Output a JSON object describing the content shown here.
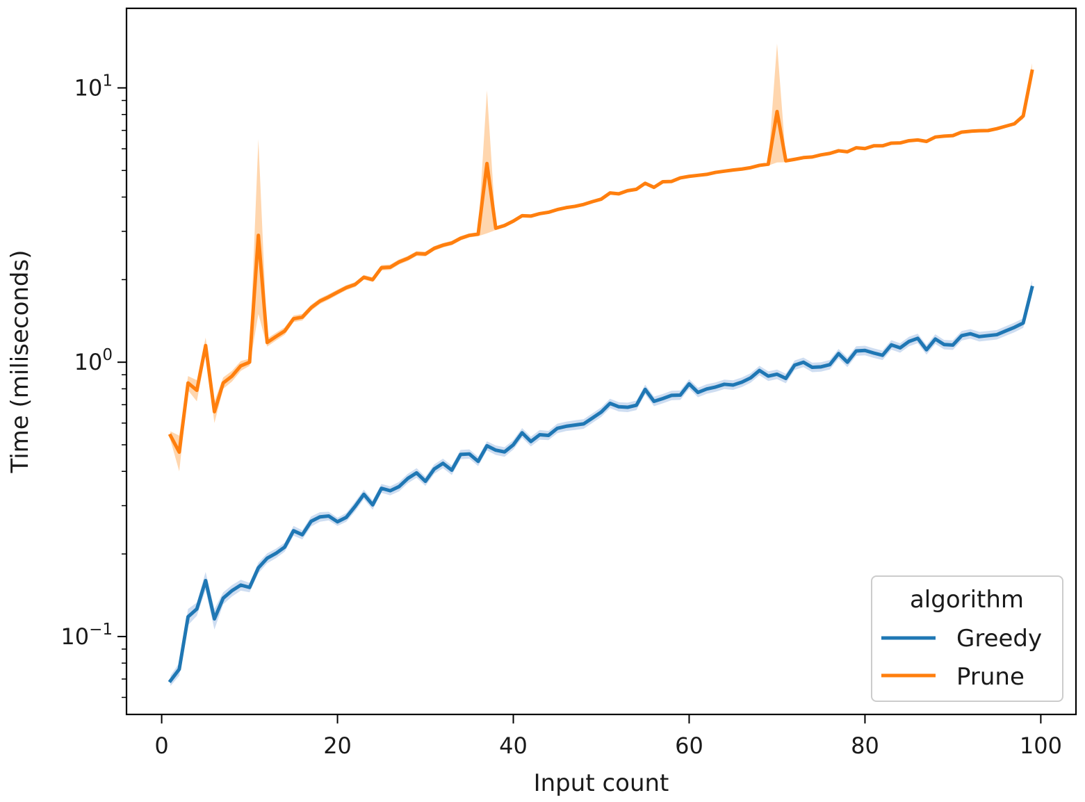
{
  "chart_data": {
    "type": "line",
    "xlabel": "Input count",
    "ylabel": "Time (miliseconds)",
    "xlim": [
      -4,
      104
    ],
    "ylim": [
      0.052,
      19.5
    ],
    "yscale": "log",
    "x_ticks": [
      0,
      20,
      40,
      60,
      80,
      100
    ],
    "y_ticks": [
      {
        "value": 0.1,
        "base": "10",
        "exp": "−1"
      },
      {
        "value": 1,
        "base": "10",
        "exp": "0"
      },
      {
        "value": 10,
        "base": "10",
        "exp": "1"
      }
    ],
    "grid": false,
    "legend": {
      "title": "algorithm",
      "position": "bottom-right"
    },
    "x": [
      1,
      2,
      3,
      4,
      5,
      6,
      7,
      8,
      9,
      10,
      11,
      12,
      13,
      14,
      15,
      16,
      17,
      18,
      19,
      20,
      21,
      22,
      23,
      24,
      25,
      26,
      27,
      28,
      29,
      30,
      31,
      32,
      33,
      34,
      35,
      36,
      37,
      38,
      39,
      40,
      41,
      42,
      43,
      44,
      45,
      46,
      47,
      48,
      49,
      50,
      51,
      52,
      53,
      54,
      55,
      56,
      57,
      58,
      59,
      60,
      61,
      62,
      63,
      64,
      65,
      66,
      67,
      68,
      69,
      70,
      71,
      72,
      73,
      74,
      75,
      76,
      77,
      78,
      79,
      80,
      81,
      82,
      83,
      84,
      85,
      86,
      87,
      88,
      89,
      90,
      91,
      92,
      93,
      94,
      95,
      96,
      97,
      98,
      99
    ],
    "series": [
      {
        "name": "Greedy",
        "color": "#1f77b4",
        "band_color": "#aec7e8",
        "values": [
          0.069,
          0.076,
          0.118,
          0.126,
          0.16,
          0.116,
          0.138,
          0.147,
          0.154,
          0.151,
          0.178,
          0.193,
          0.201,
          0.212,
          0.243,
          0.235,
          0.263,
          0.273,
          0.275,
          0.262,
          0.272,
          0.298,
          0.33,
          0.302,
          0.347,
          0.34,
          0.352,
          0.377,
          0.395,
          0.368,
          0.408,
          0.428,
          0.404,
          0.461,
          0.463,
          0.435,
          0.496,
          0.478,
          0.471,
          0.5,
          0.553,
          0.514,
          0.544,
          0.541,
          0.574,
          0.584,
          0.59,
          0.596,
          0.626,
          0.658,
          0.708,
          0.688,
          0.685,
          0.697,
          0.796,
          0.72,
          0.737,
          0.757,
          0.759,
          0.834,
          0.776,
          0.799,
          0.812,
          0.831,
          0.826,
          0.846,
          0.877,
          0.933,
          0.89,
          0.904,
          0.873,
          0.976,
          1.0,
          0.958,
          0.962,
          0.98,
          1.075,
          1.0,
          1.099,
          1.104,
          1.08,
          1.06,
          1.157,
          1.128,
          1.19,
          1.222,
          1.11,
          1.215,
          1.16,
          1.155,
          1.25,
          1.27,
          1.24,
          1.25,
          1.26,
          1.3,
          1.34,
          1.39,
          1.87
        ],
        "lower": [
          0.066,
          0.072,
          0.11,
          0.119,
          0.148,
          0.106,
          0.131,
          0.14,
          0.147,
          0.145,
          0.17,
          0.185,
          0.193,
          0.204,
          0.233,
          0.226,
          0.252,
          0.262,
          0.265,
          0.253,
          0.262,
          0.286,
          0.317,
          0.29,
          0.334,
          0.327,
          0.338,
          0.362,
          0.379,
          0.354,
          0.392,
          0.411,
          0.388,
          0.443,
          0.445,
          0.418,
          0.477,
          0.459,
          0.452,
          0.48,
          0.531,
          0.493,
          0.522,
          0.52,
          0.551,
          0.561,
          0.566,
          0.572,
          0.601,
          0.632,
          0.68,
          0.661,
          0.658,
          0.669,
          0.764,
          0.691,
          0.708,
          0.727,
          0.729,
          0.801,
          0.745,
          0.767,
          0.78,
          0.798,
          0.793,
          0.812,
          0.842,
          0.896,
          0.854,
          0.868,
          0.838,
          0.937,
          0.96,
          0.92,
          0.924,
          0.941,
          1.032,
          0.96,
          1.055,
          1.06,
          1.037,
          1.018,
          1.111,
          1.083,
          1.142,
          1.173,
          1.066,
          1.166,
          1.114,
          1.109,
          1.2,
          1.219,
          1.19,
          1.2,
          1.21,
          1.248,
          1.286,
          1.334,
          1.76
        ],
        "upper": [
          0.072,
          0.08,
          0.126,
          0.133,
          0.172,
          0.126,
          0.145,
          0.154,
          0.161,
          0.157,
          0.186,
          0.201,
          0.209,
          0.22,
          0.253,
          0.244,
          0.274,
          0.284,
          0.285,
          0.271,
          0.282,
          0.31,
          0.343,
          0.314,
          0.36,
          0.353,
          0.366,
          0.392,
          0.411,
          0.382,
          0.424,
          0.445,
          0.42,
          0.479,
          0.481,
          0.452,
          0.515,
          0.497,
          0.49,
          0.52,
          0.575,
          0.535,
          0.566,
          0.562,
          0.597,
          0.607,
          0.614,
          0.62,
          0.651,
          0.684,
          0.736,
          0.715,
          0.712,
          0.725,
          0.828,
          0.749,
          0.766,
          0.787,
          0.789,
          0.867,
          0.807,
          0.831,
          0.844,
          0.864,
          0.859,
          0.88,
          0.912,
          0.97,
          0.926,
          0.94,
          0.908,
          1.015,
          1.04,
          0.996,
          1.0,
          1.019,
          1.118,
          1.04,
          1.143,
          1.148,
          1.123,
          1.102,
          1.203,
          1.173,
          1.238,
          1.271,
          1.154,
          1.264,
          1.206,
          1.201,
          1.3,
          1.321,
          1.29,
          1.3,
          1.31,
          1.352,
          1.394,
          1.446,
          1.99
        ]
      },
      {
        "name": "Prune",
        "color": "#ff7f0e",
        "band_color": "#ffbb78",
        "values": [
          0.54,
          0.47,
          0.84,
          0.79,
          1.15,
          0.66,
          0.84,
          0.89,
          0.97,
          1.0,
          2.9,
          1.18,
          1.24,
          1.3,
          1.44,
          1.46,
          1.58,
          1.67,
          1.73,
          1.8,
          1.87,
          1.92,
          2.04,
          2.0,
          2.21,
          2.22,
          2.32,
          2.39,
          2.49,
          2.48,
          2.6,
          2.67,
          2.72,
          2.83,
          2.9,
          2.93,
          5.3,
          3.08,
          3.15,
          3.27,
          3.42,
          3.41,
          3.48,
          3.52,
          3.6,
          3.66,
          3.7,
          3.76,
          3.85,
          3.93,
          4.14,
          4.11,
          4.22,
          4.27,
          4.49,
          4.34,
          4.55,
          4.56,
          4.7,
          4.76,
          4.8,
          4.84,
          4.92,
          4.97,
          5.02,
          5.06,
          5.12,
          5.22,
          5.27,
          8.2,
          5.42,
          5.49,
          5.57,
          5.6,
          5.7,
          5.77,
          5.9,
          5.85,
          6.05,
          6.01,
          6.15,
          6.15,
          6.29,
          6.3,
          6.42,
          6.46,
          6.38,
          6.62,
          6.67,
          6.7,
          6.9,
          6.95,
          6.98,
          6.99,
          7.1,
          7.25,
          7.4,
          7.9,
          11.5
        ],
        "lower": [
          0.52,
          0.4,
          0.79,
          0.72,
          1.07,
          0.6,
          0.8,
          0.85,
          0.93,
          0.97,
          1.5,
          1.14,
          1.2,
          1.26,
          1.4,
          1.42,
          1.54,
          1.63,
          1.69,
          1.76,
          1.83,
          1.88,
          2.0,
          1.96,
          2.16,
          2.17,
          2.27,
          2.34,
          2.44,
          2.43,
          2.55,
          2.62,
          2.67,
          2.78,
          2.85,
          2.88,
          2.95,
          3.03,
          3.1,
          3.22,
          3.37,
          3.36,
          3.43,
          3.47,
          3.55,
          3.61,
          3.65,
          3.71,
          3.8,
          3.88,
          4.08,
          4.05,
          4.16,
          4.21,
          4.42,
          4.28,
          4.49,
          4.5,
          4.64,
          4.7,
          4.74,
          4.78,
          4.86,
          4.91,
          4.96,
          5.0,
          5.06,
          5.16,
          5.21,
          5.35,
          5.36,
          5.43,
          5.51,
          5.54,
          5.64,
          5.71,
          5.83,
          5.78,
          5.98,
          5.94,
          6.08,
          6.08,
          6.22,
          6.23,
          6.35,
          6.39,
          6.31,
          6.55,
          6.6,
          6.63,
          6.83,
          6.88,
          6.91,
          6.92,
          7.03,
          7.18,
          7.32,
          7.7,
          10.8
        ],
        "upper": [
          0.56,
          0.54,
          0.89,
          0.86,
          1.23,
          0.72,
          0.88,
          0.93,
          1.01,
          1.03,
          6.5,
          1.22,
          1.28,
          1.34,
          1.48,
          1.5,
          1.62,
          1.71,
          1.77,
          1.84,
          1.91,
          1.96,
          2.08,
          2.04,
          2.26,
          2.27,
          2.37,
          2.44,
          2.54,
          2.53,
          2.65,
          2.72,
          2.77,
          2.88,
          2.95,
          2.98,
          9.8,
          3.13,
          3.2,
          3.32,
          3.47,
          3.46,
          3.53,
          3.57,
          3.65,
          3.71,
          3.75,
          3.81,
          3.9,
          3.98,
          4.2,
          4.17,
          4.28,
          4.33,
          4.56,
          4.4,
          4.61,
          4.62,
          4.76,
          4.82,
          4.86,
          4.9,
          4.98,
          5.03,
          5.08,
          5.12,
          5.18,
          5.28,
          5.33,
          14.5,
          5.48,
          5.55,
          5.63,
          5.66,
          5.76,
          5.83,
          5.97,
          5.92,
          6.12,
          6.08,
          6.22,
          6.22,
          6.36,
          6.37,
          6.49,
          6.53,
          6.45,
          6.69,
          6.74,
          6.77,
          6.97,
          7.02,
          7.05,
          7.06,
          7.17,
          7.32,
          7.48,
          8.1,
          12.3
        ]
      }
    ]
  }
}
